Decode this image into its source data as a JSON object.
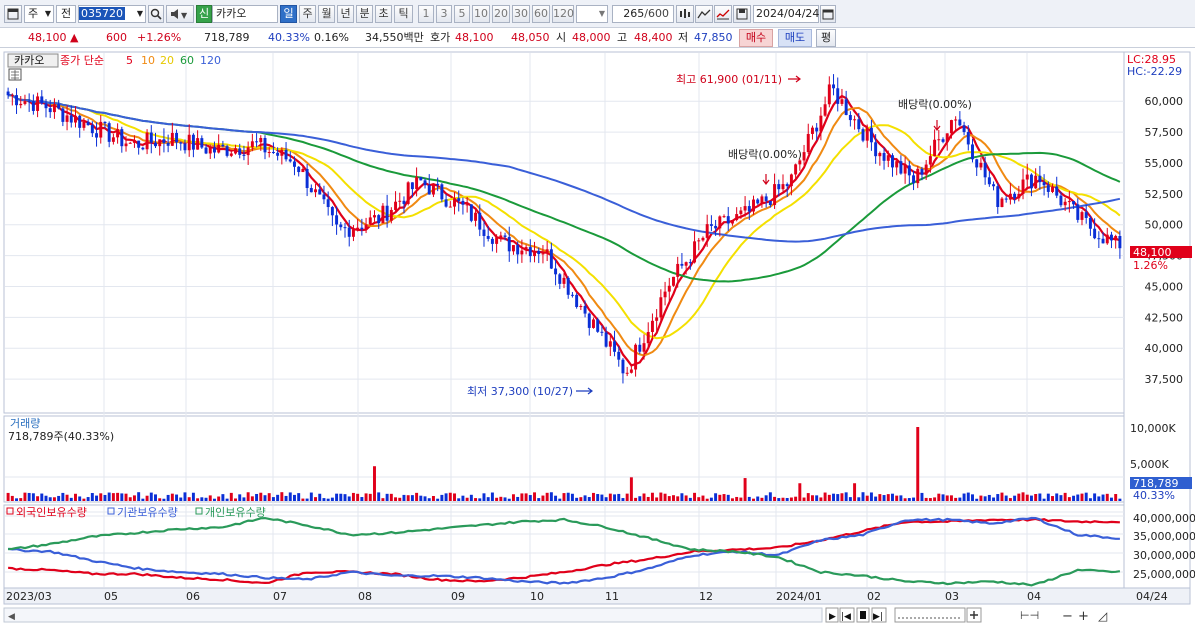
{
  "toolbar": {
    "market_label": "주",
    "prev_label": "전",
    "code": "035720",
    "stock_tag": "신",
    "stock_name": "카카오",
    "periods": [
      "일",
      "주",
      "월",
      "년",
      "분",
      "초",
      "틱"
    ],
    "active_period": "일",
    "intervals": [
      "1",
      "3",
      "5",
      "10",
      "20",
      "30",
      "60",
      "120"
    ],
    "count": "265",
    "count_total": "/600",
    "date": "2024/04/24"
  },
  "price": {
    "last": "48,100",
    "change": "600",
    "change_pct": "+1.26%",
    "volume": "718,789",
    "volume_ratio": "40.33%",
    "turnover_ratio": "0.16%",
    "amount": "34,550백만",
    "ask_label": "호가",
    "ask": "48,100",
    "bid": "48,050",
    "open_label": "시",
    "open": "48,000",
    "high_label": "고",
    "high": "48,400",
    "low_label": "저",
    "low": "47,850",
    "buy_label": "매수",
    "sell_label": "매도",
    "flat_label": "평"
  },
  "colors": {
    "up": "#e0001a",
    "down": "#0a2fd6",
    "ma5": "#e0001a",
    "ma10": "#f08a12",
    "ma20": "#f4e000",
    "ma60": "#1a9a3a",
    "ma120": "#3a5fd8",
    "foreign": "#e0001a",
    "institution": "#3a5fd8",
    "individual": "#2a9a5a"
  },
  "price_panel": {
    "legend_name": "카카오",
    "legend_ma": "종가 단순",
    "ma_periods": [
      "5",
      "10",
      "20",
      "60",
      "120"
    ],
    "lc_label": "LC:28.95",
    "hc_label": "HC:-22.29",
    "high_annotation": "최고 61,900 (01/11)",
    "low_annotation": "최저 37,300 (10/27)",
    "dividend_1": "배당락(0.00%)",
    "dividend_2": "배당락(0.00%)",
    "last_price_tag": "48,100",
    "last_change_tag": "1.26%",
    "y_ticks": [
      "60,000",
      "57,500",
      "55,000",
      "52,500",
      "50,000",
      "47,500",
      "45,000",
      "42,500",
      "40,000",
      "37,500"
    ]
  },
  "volume_panel": {
    "title": "거래량",
    "value": "718,789주(40.33%)",
    "y_ticks": [
      "10,000K",
      "5,000K"
    ],
    "last_tag": "718,789",
    "last_pct_tag": "40.33%"
  },
  "holdings_panel": {
    "legend": [
      "외국인보유수량",
      "기관보유수량",
      "개인보유수량"
    ],
    "y_ticks": [
      "40,000,000",
      "35,000,000",
      "30,000,000",
      "25,000,000"
    ]
  },
  "x_axis": {
    "labels": [
      "2023/03",
      "05",
      "06",
      "07",
      "08",
      "09",
      "10",
      "11",
      "12",
      "2024/01",
      "02",
      "03",
      "04",
      "04/24"
    ]
  },
  "chart_data": {
    "type": "candlestick",
    "title": "카카오",
    "y_ticks": [
      60000,
      57500,
      55000,
      52500,
      50000,
      47500,
      45000,
      42500,
      40000,
      37500
    ],
    "annotations": [
      {
        "text": "최고 61,900 (01/11)",
        "value": 61900,
        "date": "01/11"
      },
      {
        "text": "최저 37,300 (10/27)",
        "value": 37300,
        "date": "10/27"
      }
    ],
    "last_close": 48100,
    "close_series": {
      "name": "종가",
      "x": [
        "2023/03",
        "03",
        "04",
        "04",
        "05",
        "05",
        "06",
        "06",
        "07",
        "07",
        "08",
        "08",
        "09",
        "09",
        "10",
        "10",
        "11",
        "11",
        "12",
        "12",
        "2024/01",
        "01",
        "02",
        "02",
        "03",
        "03",
        "04",
        "04/24"
      ],
      "values": [
        60500,
        59500,
        58000,
        56500,
        57000,
        56000,
        56500,
        55000,
        49500,
        50500,
        53500,
        51500,
        48500,
        48000,
        43000,
        38000,
        45000,
        49500,
        51000,
        53500,
        61000,
        56500,
        53500,
        59000,
        52000,
        54000,
        50500,
        48100
      ]
    },
    "ma_periods": [
      5,
      10,
      20,
      60,
      120
    ],
    "holdings_series": [
      "외국인보유수량",
      "기관보유수량",
      "개인보유수량"
    ]
  }
}
